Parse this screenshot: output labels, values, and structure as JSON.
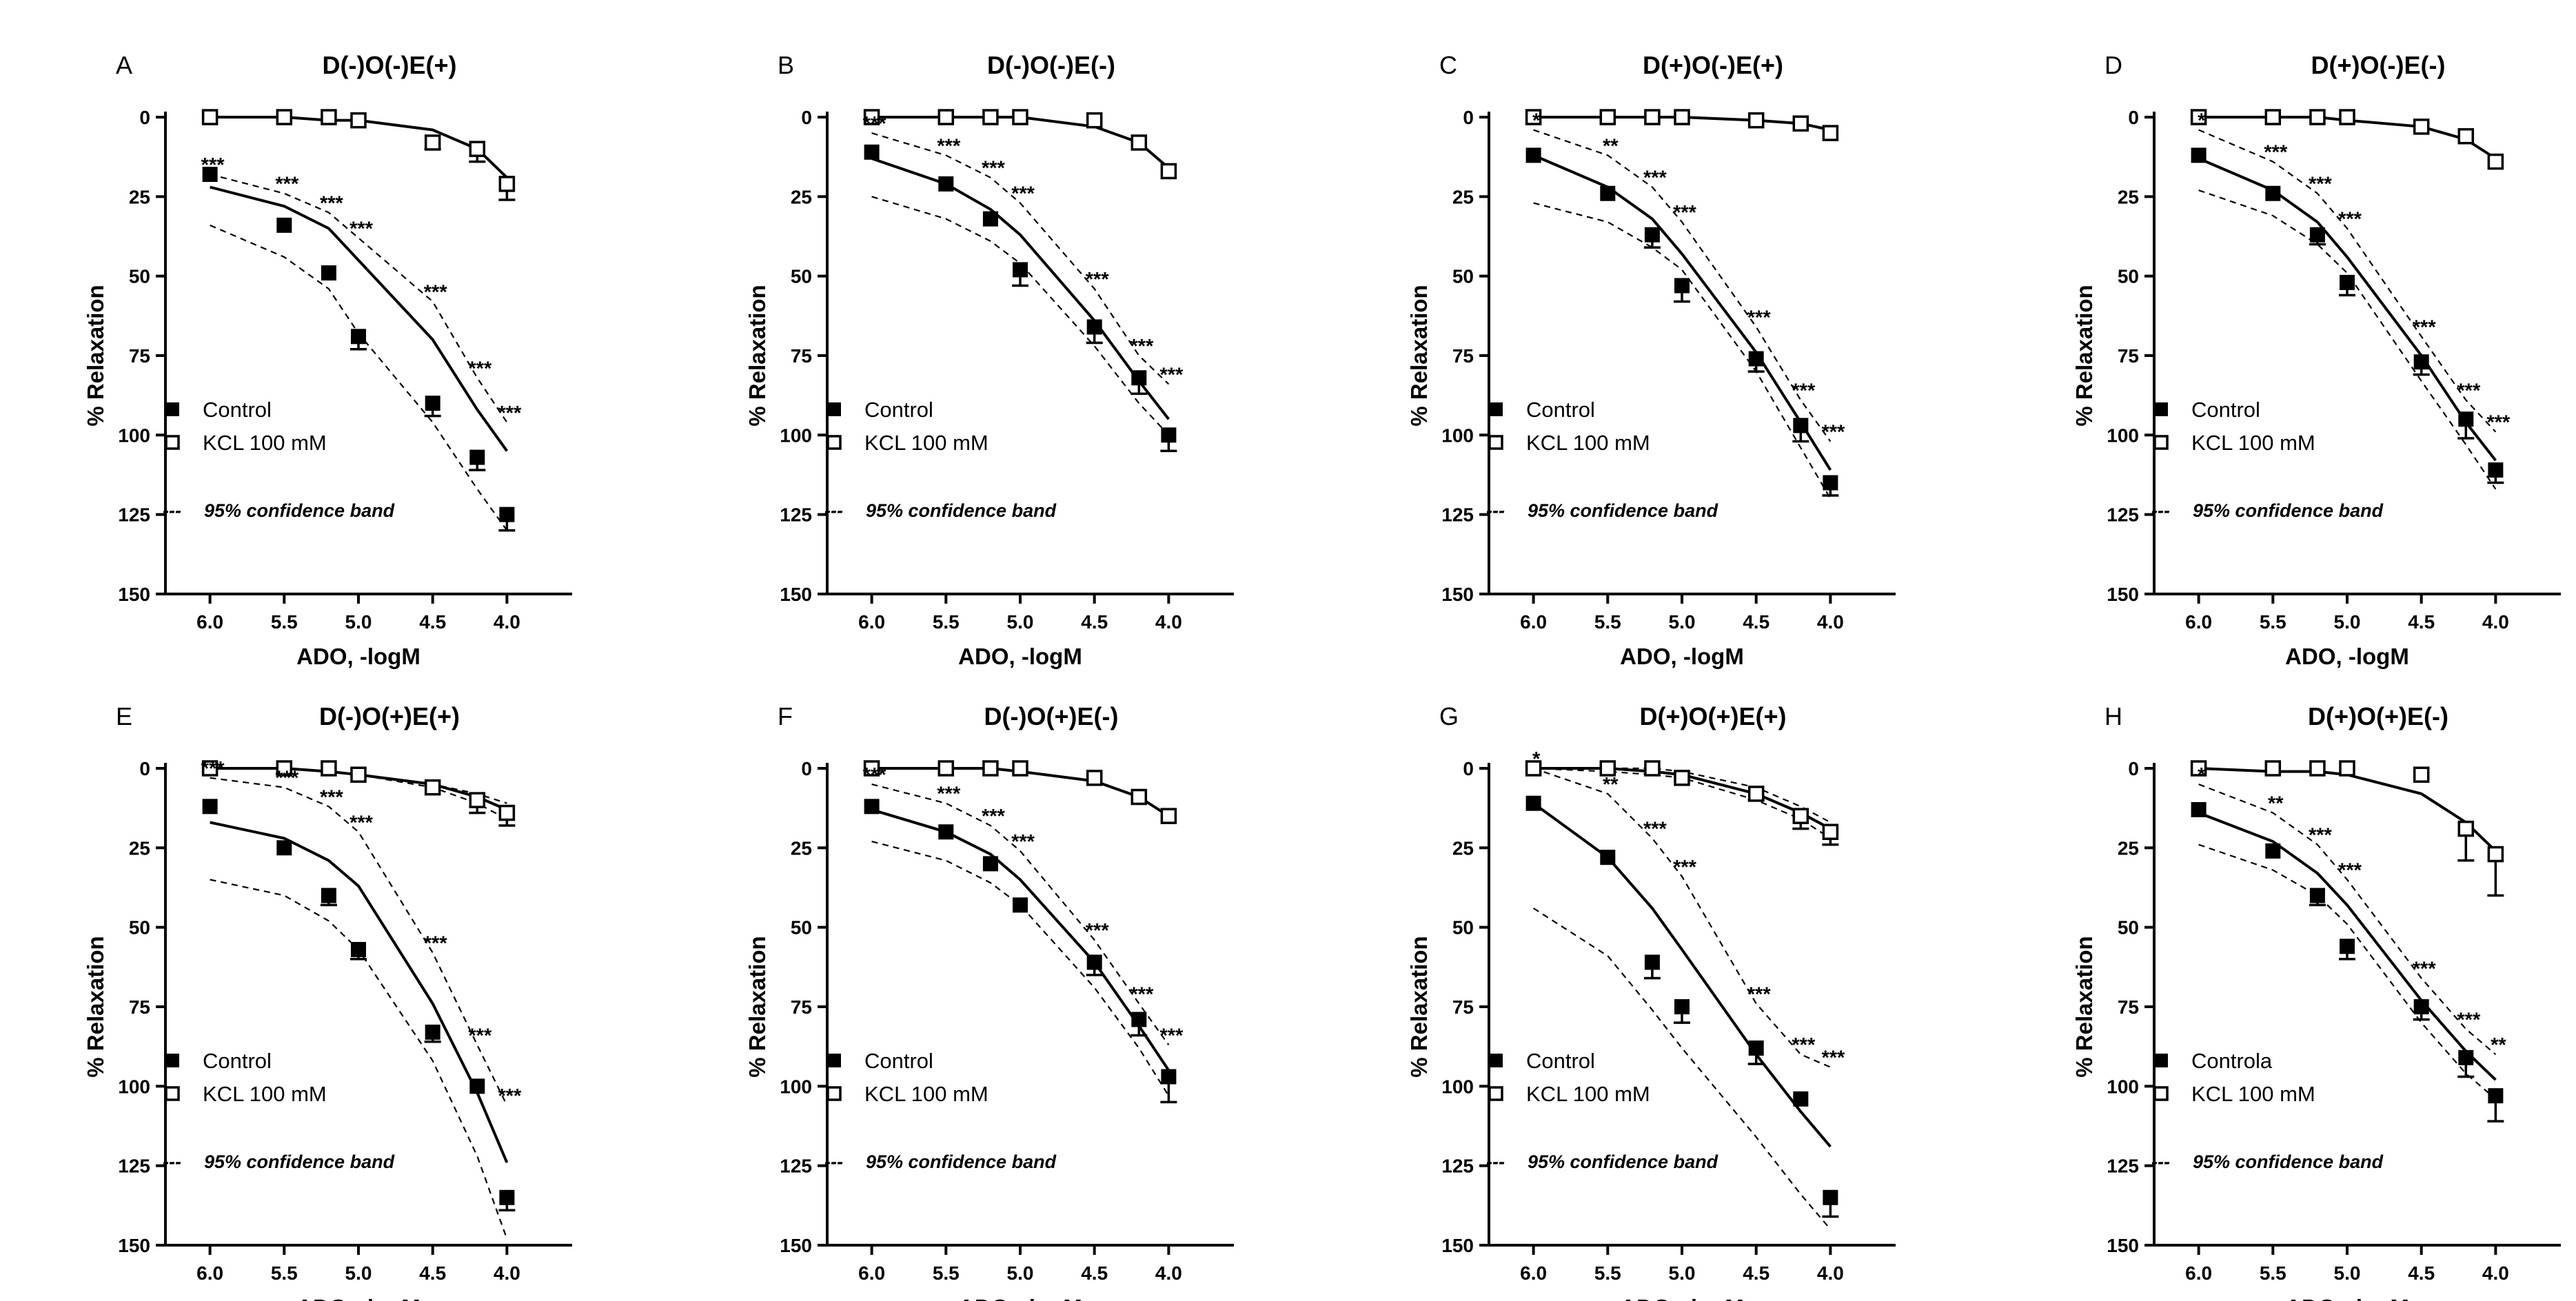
{
  "figure": {
    "legend": {
      "control": "Control",
      "control_alt": "Controla",
      "kcl": "KCL 100 mM",
      "band": "95% confidence band",
      "band_marker": "---"
    }
  },
  "chart_data": [
    {
      "type": "line",
      "panel": "A",
      "title": "D(-)O(-)E(+)",
      "xlabel": "ADO, -logM",
      "ylabel": "% Relaxation",
      "xlim": [
        6.3,
        3.7
      ],
      "ylim": [
        0,
        150
      ],
      "xticks": [
        "6.0",
        "5.5",
        "5.0",
        "4.5",
        "4.0"
      ],
      "yticks": [
        "0",
        "25",
        "50",
        "75",
        "100",
        "125",
        "150"
      ],
      "x": [
        6.0,
        5.5,
        5.2,
        5.0,
        4.5,
        4.2,
        4.0
      ],
      "significance": [
        "***",
        "***",
        "***",
        "***",
        "***",
        "***",
        "***"
      ],
      "series": [
        {
          "name": "Control",
          "marker": "filled-square",
          "values": [
            18,
            34,
            49,
            69,
            90,
            107,
            125
          ],
          "errors": [
            0,
            0,
            0,
            4,
            4,
            4,
            5
          ],
          "fit": [
            22,
            28,
            35,
            45,
            70,
            92,
            105
          ],
          "band": [
            [
              34,
              44,
              54,
              68,
              96,
              117,
              130
            ],
            [
              18,
              24,
              30,
              38,
              58,
              82,
              96
            ]
          ]
        },
        {
          "name": "KCL 100 mM",
          "marker": "open-square",
          "values": [
            0,
            0,
            0,
            1,
            8,
            10,
            21
          ],
          "errors": [
            0,
            0,
            0,
            0,
            2,
            4,
            5
          ],
          "fit": [
            0,
            0,
            1,
            1,
            4,
            10,
            19
          ]
        }
      ]
    },
    {
      "type": "line",
      "panel": "B",
      "title": "D(-)O(-)E(-)",
      "xlabel": "ADO, -logM",
      "ylabel": "% Relaxation",
      "xlim": [
        6.3,
        3.7
      ],
      "ylim": [
        0,
        150
      ],
      "xticks": [
        "6.0",
        "5.5",
        "5.0",
        "4.5",
        "4.0"
      ],
      "yticks": [
        "0",
        "25",
        "50",
        "75",
        "100",
        "125",
        "150"
      ],
      "x": [
        6.0,
        5.5,
        5.2,
        5.0,
        4.5,
        4.2,
        4.0
      ],
      "significance": [
        "***",
        "***",
        "***",
        "***",
        "***",
        "***",
        "***"
      ],
      "series": [
        {
          "name": "Control",
          "marker": "filled-square",
          "values": [
            11,
            21,
            32,
            48,
            66,
            82,
            100
          ],
          "errors": [
            0,
            0,
            0,
            5,
            5,
            5,
            5
          ],
          "fit": [
            13,
            21,
            29,
            37,
            64,
            83,
            95
          ],
          "band": [
            [
              25,
              32,
              39,
              46,
              72,
              90,
              100
            ],
            [
              5,
              12,
              19,
              27,
              54,
              75,
              84
            ]
          ]
        },
        {
          "name": "KCL 100 mM",
          "marker": "open-square",
          "values": [
            0,
            0,
            0,
            0,
            1,
            8,
            17
          ],
          "errors": [
            0,
            0,
            0,
            0,
            0,
            0,
            0
          ],
          "fit": [
            0,
            0,
            0,
            0,
            3,
            8,
            16
          ]
        }
      ]
    },
    {
      "type": "line",
      "panel": "C",
      "title": "D(+)O(-)E(+)",
      "xlabel": "ADO, -logM",
      "ylabel": "% Relaxation",
      "xlim": [
        6.3,
        3.7
      ],
      "ylim": [
        0,
        150
      ],
      "xticks": [
        "6.0",
        "5.5",
        "5.0",
        "4.5",
        "4.0"
      ],
      "yticks": [
        "0",
        "25",
        "50",
        "75",
        "100",
        "125",
        "150"
      ],
      "x": [
        6.0,
        5.5,
        5.2,
        5.0,
        4.5,
        4.2,
        4.0
      ],
      "significance": [
        "*",
        "**",
        "***",
        "***",
        "***",
        "***",
        "***"
      ],
      "series": [
        {
          "name": "Control",
          "marker": "filled-square",
          "values": [
            12,
            24,
            37,
            53,
            76,
            97,
            115
          ],
          "errors": [
            0,
            0,
            4,
            5,
            4,
            5,
            4
          ],
          "fit": [
            12,
            22,
            32,
            43,
            74,
            96,
            111
          ],
          "band": [
            [
              27,
              33,
              41,
              48,
              80,
              104,
              120
            ],
            [
              4,
              12,
              22,
              33,
              66,
              89,
              102
            ]
          ]
        },
        {
          "name": "KCL 100 mM",
          "marker": "open-square",
          "values": [
            0,
            0,
            0,
            0,
            1,
            2,
            5
          ],
          "errors": [
            0,
            0,
            0,
            0,
            0,
            0,
            0
          ],
          "fit": [
            0,
            0,
            0,
            0,
            1,
            2,
            4
          ]
        }
      ]
    },
    {
      "type": "line",
      "panel": "D",
      "title": "D(+)O(-)E(-)",
      "xlabel": "ADO, -logM",
      "ylabel": "% Relaxation",
      "xlim": [
        6.3,
        3.7
      ],
      "ylim": [
        0,
        150
      ],
      "xticks": [
        "6.0",
        "5.5",
        "5.0",
        "4.5",
        "4.0"
      ],
      "yticks": [
        "0",
        "25",
        "50",
        "75",
        "100",
        "125",
        "150"
      ],
      "x": [
        6.0,
        5.5,
        5.2,
        5.0,
        4.5,
        4.2,
        4.0
      ],
      "significance": [
        "*",
        "***",
        "***",
        "***",
        "***",
        "***",
        "***"
      ],
      "series": [
        {
          "name": "Control",
          "marker": "filled-square",
          "values": [
            12,
            24,
            37,
            52,
            77,
            95,
            111
          ],
          "errors": [
            0,
            0,
            3,
            4,
            4,
            6,
            4
          ],
          "fit": [
            13,
            23,
            33,
            44,
            75,
            96,
            108
          ],
          "band": [
            [
              23,
              31,
              40,
              49,
              83,
              103,
              117
            ],
            [
              4,
              14,
              24,
              35,
              69,
              89,
              99
            ]
          ]
        },
        {
          "name": "KCL 100 mM",
          "marker": "open-square",
          "values": [
            0,
            0,
            0,
            0,
            3,
            6,
            14
          ],
          "errors": [
            0,
            0,
            0,
            0,
            0,
            0,
            0
          ],
          "fit": [
            0,
            0,
            0,
            1,
            3,
            7,
            13
          ]
        }
      ]
    },
    {
      "type": "line",
      "panel": "E",
      "title": "D(-)O(+)E(+)",
      "xlabel": "ADO, -logM",
      "ylabel": "% Relaxation",
      "xlim": [
        6.3,
        3.7
      ],
      "ylim": [
        0,
        150
      ],
      "xticks": [
        "6.0",
        "5.5",
        "5.0",
        "4.5",
        "4.0"
      ],
      "yticks": [
        "0",
        "25",
        "50",
        "75",
        "100",
        "125",
        "150"
      ],
      "x": [
        6.0,
        5.5,
        5.2,
        5.0,
        4.5,
        4.2,
        4.0
      ],
      "significance": [
        "***",
        "***",
        "***",
        "***",
        "***",
        "***",
        "***"
      ],
      "series": [
        {
          "name": "Control",
          "marker": "filled-square",
          "values": [
            12,
            25,
            40,
            57,
            83,
            100,
            135
          ],
          "errors": [
            0,
            0,
            3,
            3,
            3,
            0,
            4
          ],
          "fit": [
            17,
            22,
            29,
            37,
            74,
            102,
            124
          ],
          "band": [
            [
              35,
              40,
              48,
              57,
              92,
              122,
              148
            ],
            [
              3,
              6,
              12,
              20,
              58,
              87,
              106
            ]
          ]
        },
        {
          "name": "KCL 100 mM",
          "marker": "open-square",
          "values": [
            0,
            0,
            0,
            2,
            6,
            10,
            14
          ],
          "errors": [
            0,
            0,
            0,
            0,
            0,
            4,
            4
          ],
          "fit": [
            0,
            0,
            1,
            2,
            5,
            9,
            13
          ],
          "band": [
            [
              0,
              0,
              1,
              2,
              6,
              11,
              16
            ],
            [
              0,
              0,
              1,
              2,
              5,
              8,
              11
            ]
          ]
        }
      ]
    },
    {
      "type": "line",
      "panel": "F",
      "title": "D(-)O(+)E(-)",
      "xlabel": "ADO, -logM",
      "ylabel": "% Relaxation",
      "xlim": [
        6.3,
        3.7
      ],
      "ylim": [
        0,
        150
      ],
      "xticks": [
        "6.0",
        "5.5",
        "5.0",
        "4.5",
        "4.0"
      ],
      "yticks": [
        "0",
        "25",
        "50",
        "75",
        "100",
        "125",
        "150"
      ],
      "x": [
        6.0,
        5.5,
        5.2,
        5.0,
        4.5,
        4.2,
        4.0
      ],
      "significance": [
        "***",
        "***",
        "***",
        "***",
        "***",
        "***",
        "***"
      ],
      "series": [
        {
          "name": "Control",
          "marker": "filled-square",
          "values": [
            12,
            20,
            30,
            43,
            61,
            79,
            97
          ],
          "errors": [
            0,
            0,
            0,
            0,
            4,
            5,
            8
          ],
          "fit": [
            13,
            20,
            27,
            35,
            61,
            81,
            95
          ],
          "band": [
            [
              23,
              29,
              36,
              43,
              69,
              88,
              103
            ],
            [
              5,
              11,
              18,
              26,
              54,
              74,
              87
            ]
          ]
        },
        {
          "name": "KCL 100 mM",
          "marker": "open-square",
          "values": [
            0,
            0,
            0,
            0,
            3,
            9,
            15
          ],
          "errors": [
            0,
            0,
            0,
            0,
            0,
            0,
            0
          ],
          "fit": [
            0,
            0,
            0,
            1,
            4,
            9,
            15
          ]
        }
      ]
    },
    {
      "type": "line",
      "panel": "G",
      "title": "D(+)O(+)E(+)",
      "xlabel": "ADO, -logM",
      "ylabel": "% Relaxation",
      "xlim": [
        6.3,
        3.7
      ],
      "ylim": [
        0,
        150
      ],
      "xticks": [
        "6.0",
        "5.5",
        "5.0",
        "4.5",
        "4.0"
      ],
      "yticks": [
        "0",
        "25",
        "50",
        "75",
        "100",
        "125",
        "150"
      ],
      "x": [
        6.0,
        5.5,
        5.2,
        5.0,
        4.5,
        4.2,
        4.0
      ],
      "significance": [
        "*",
        "**",
        "***",
        "***",
        "***",
        "***",
        "***"
      ],
      "series": [
        {
          "name": "Control",
          "marker": "filled-square",
          "values": [
            11,
            28,
            61,
            75,
            88,
            104,
            135
          ],
          "errors": [
            0,
            0,
            5,
            5,
            5,
            0,
            6
          ],
          "fit": [
            11,
            28,
            44,
            57,
            90,
            108,
            119
          ],
          "band": [
            [
              44,
              59,
              76,
              88,
              116,
              134,
              145
            ],
            [
              0,
              8,
              22,
              34,
              74,
              90,
              94
            ]
          ]
        },
        {
          "name": "KCL 100 mM",
          "marker": "open-square",
          "values": [
            0,
            0,
            0,
            3,
            8,
            15,
            20
          ],
          "errors": [
            0,
            0,
            0,
            0,
            2,
            4,
            4
          ],
          "fit": [
            0,
            0,
            1,
            2,
            8,
            14,
            19
          ],
          "band": [
            [
              0,
              1,
              2,
              3,
              10,
              16,
              22
            ],
            [
              0,
              0,
              0,
              1,
              6,
              12,
              17
            ]
          ]
        }
      ]
    },
    {
      "type": "line",
      "panel": "H",
      "title": "D(+)O(+)E(-)",
      "xlabel": "ADO, -logM",
      "ylabel": "% Relaxation",
      "xlim": [
        6.3,
        3.7
      ],
      "ylim": [
        0,
        150
      ],
      "xticks": [
        "6.0",
        "5.5",
        "5.0",
        "4.5",
        "4.0"
      ],
      "yticks": [
        "0",
        "25",
        "50",
        "75",
        "100",
        "125",
        "150"
      ],
      "x": [
        6.0,
        5.5,
        5.2,
        5.0,
        4.5,
        4.2,
        4.0
      ],
      "significance": [
        "*",
        "**",
        "***",
        "***",
        "***",
        "***",
        "**"
      ],
      "series": [
        {
          "name": "Controla",
          "marker": "filled-square",
          "values": [
            13,
            26,
            40,
            56,
            75,
            91,
            103
          ],
          "errors": [
            0,
            0,
            3,
            4,
            4,
            6,
            8
          ],
          "fit": [
            14,
            23,
            33,
            43,
            73,
            89,
            98
          ],
          "band": [
            [
              24,
              32,
              40,
              49,
              80,
              96,
              104
            ],
            [
              5,
              14,
              24,
              35,
              66,
              82,
              90
            ]
          ]
        },
        {
          "name": "KCL 100 mM",
          "marker": "open-square",
          "values": [
            0,
            0,
            0,
            0,
            2,
            19,
            27
          ],
          "errors": [
            0,
            0,
            0,
            0,
            0,
            10,
            13
          ],
          "fit": [
            0,
            1,
            1,
            2,
            8,
            17,
            26
          ]
        }
      ]
    }
  ]
}
